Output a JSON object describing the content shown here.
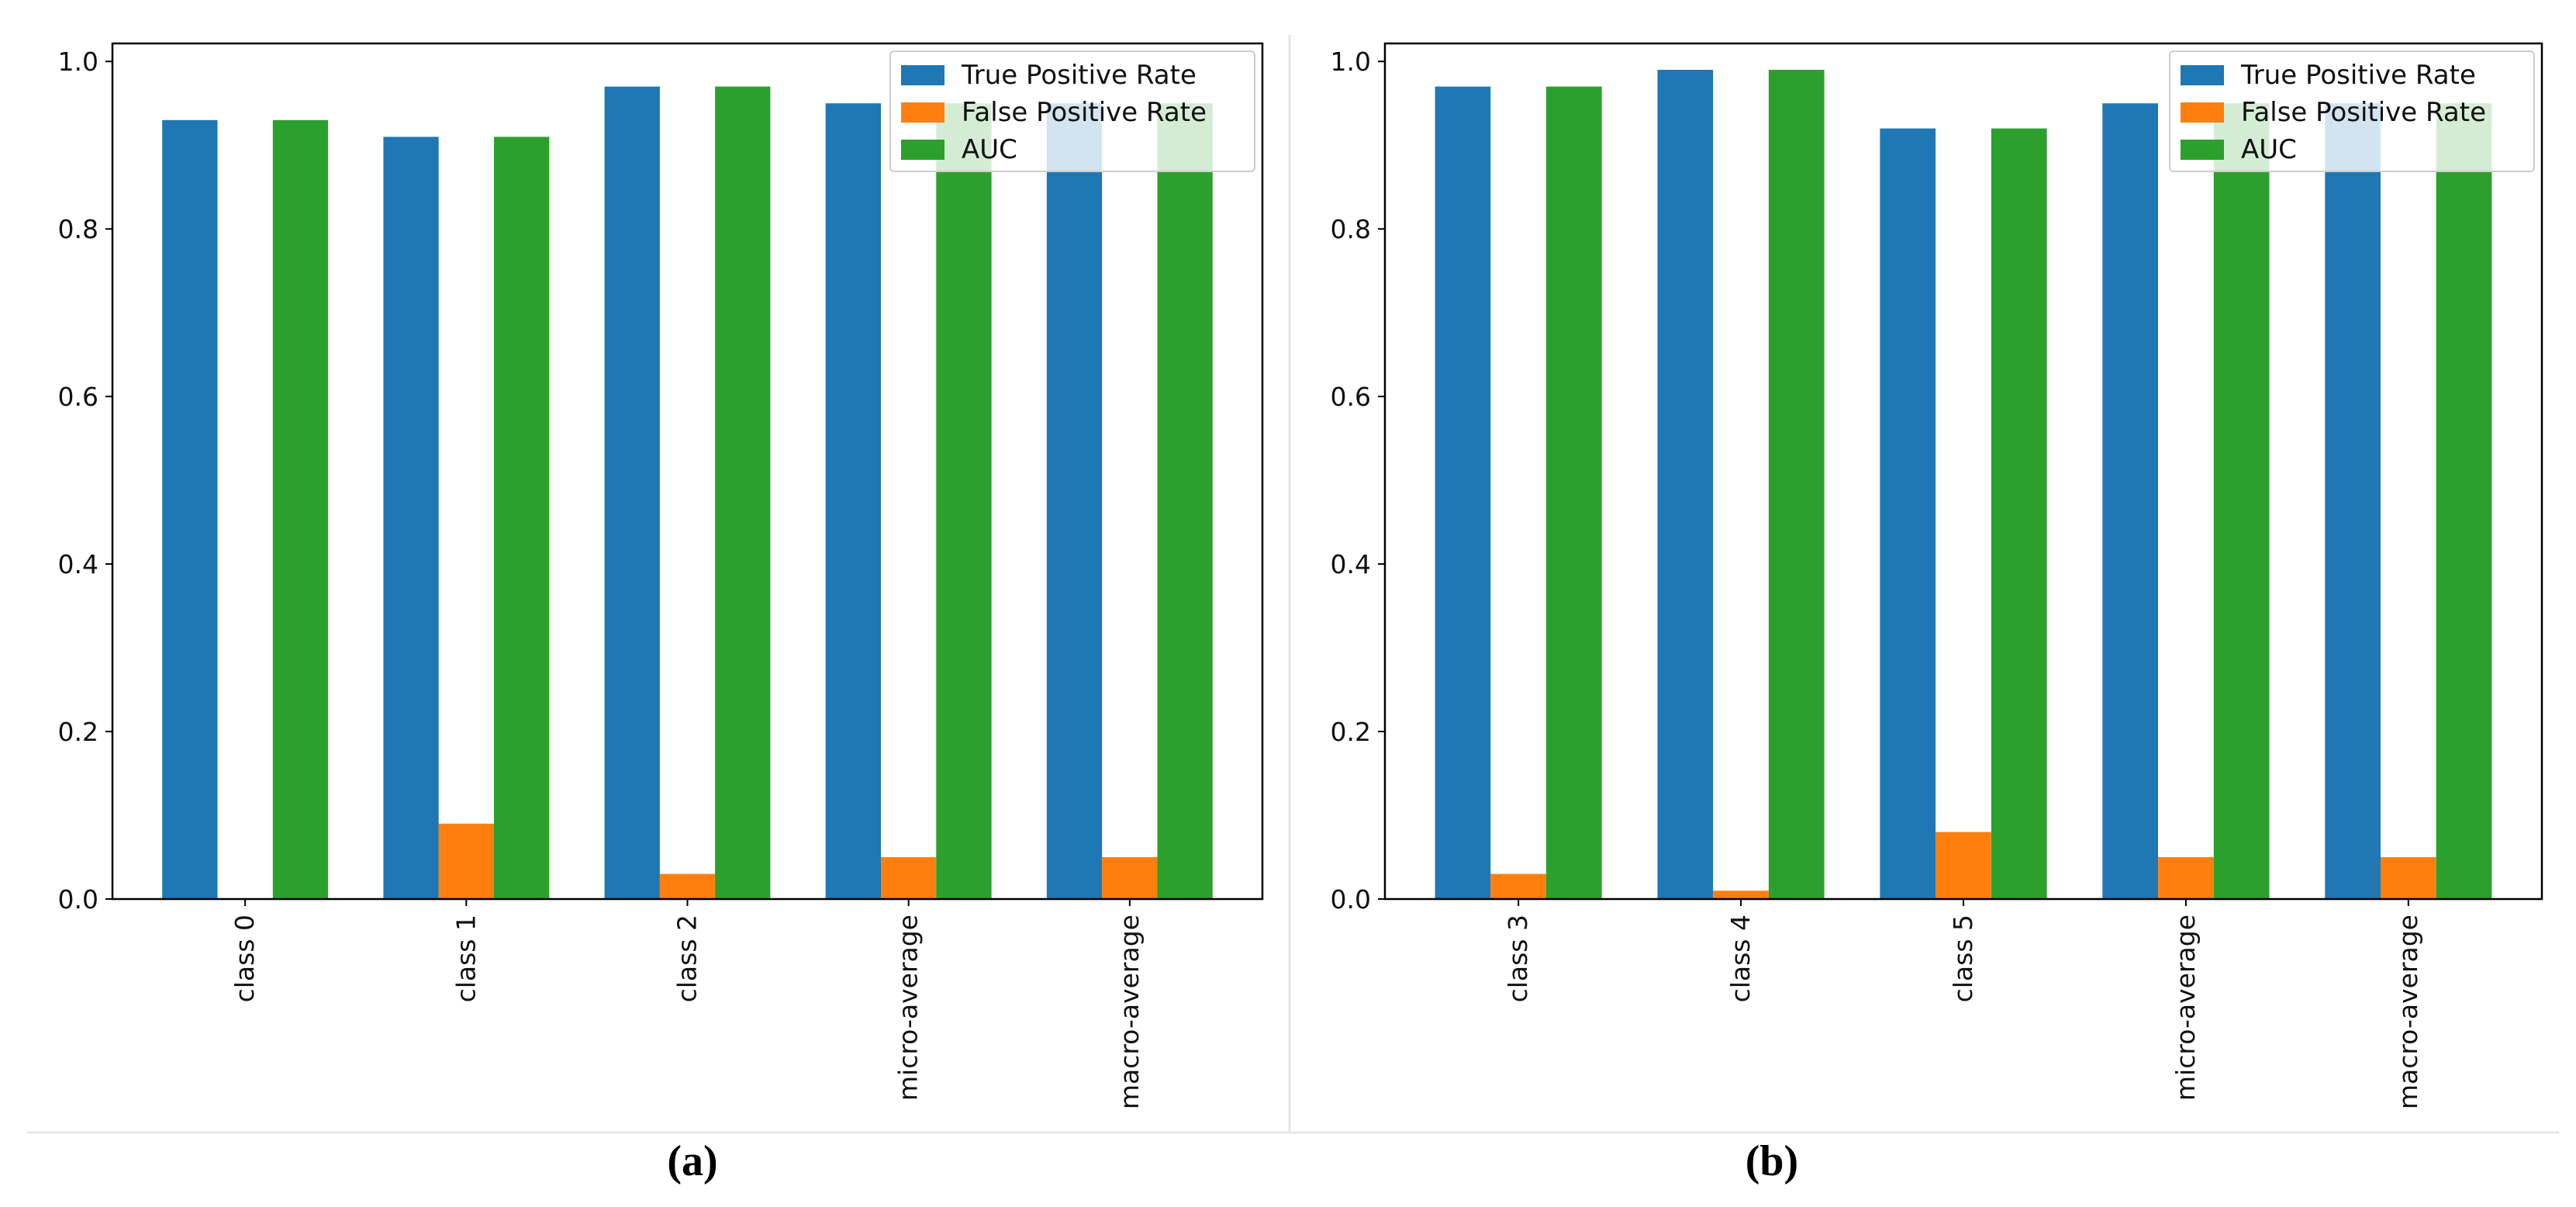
{
  "colors": {
    "tpr": "#1f77b4",
    "fpr": "#ff7f0e",
    "auc": "#2ca02c",
    "axis": "#000000",
    "separator": "#e6e6e6"
  },
  "chart_data": [
    {
      "type": "bar",
      "panel_label": "(a)",
      "categories": [
        "class 0",
        "class 1",
        "class 2",
        "micro-average",
        "macro-average"
      ],
      "series": [
        {
          "name": "True Positive Rate",
          "values": [
            0.93,
            0.91,
            0.97,
            0.95,
            0.95
          ]
        },
        {
          "name": "False Positive Rate",
          "values": [
            0.0,
            0.09,
            0.03,
            0.05,
            0.05
          ]
        },
        {
          "name": "AUC",
          "values": [
            0.93,
            0.91,
            0.97,
            0.95,
            0.95
          ]
        }
      ],
      "yticks": [
        "0.0",
        "0.2",
        "0.4",
        "0.6",
        "0.8",
        "1.0"
      ],
      "ylim": [
        0,
        1.0
      ],
      "legend": "top-right"
    },
    {
      "type": "bar",
      "panel_label": "(b)",
      "categories": [
        "class 3",
        "class 4",
        "class 5",
        "micro-average",
        "macro-average"
      ],
      "series": [
        {
          "name": "True Positive Rate",
          "values": [
            0.97,
            0.99,
            0.92,
            0.95,
            0.95
          ]
        },
        {
          "name": "False Positive Rate",
          "values": [
            0.03,
            0.01,
            0.08,
            0.05,
            0.05
          ]
        },
        {
          "name": "AUC",
          "values": [
            0.97,
            0.99,
            0.92,
            0.95,
            0.95
          ]
        }
      ],
      "yticks": [
        "0.0",
        "0.2",
        "0.4",
        "0.6",
        "0.8",
        "1.0"
      ],
      "ylim": [
        0,
        1.0
      ],
      "legend": "top-right"
    }
  ]
}
